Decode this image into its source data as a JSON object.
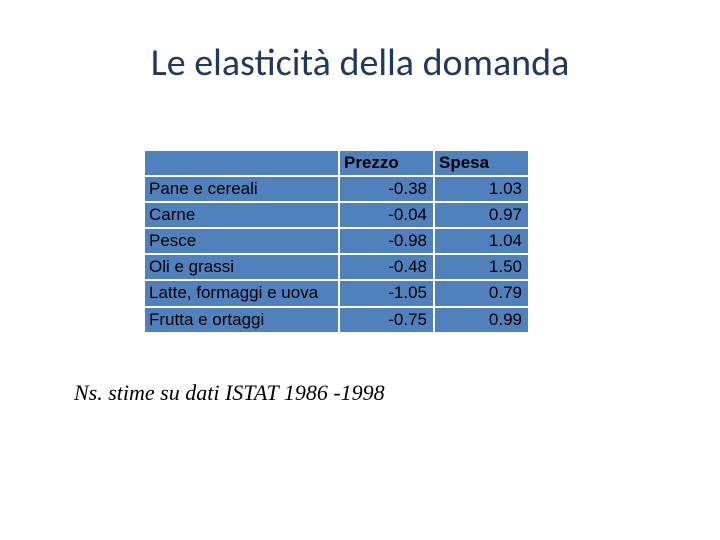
{
  "title": "Le elasticità della domanda",
  "table": {
    "header_blank": "",
    "header_prezzo": "Prezzo",
    "header_spesa": "Spesa",
    "cell_bg": "#4f81bd",
    "border_color": "#ffffff",
    "rows": [
      {
        "label": "Pane e cereali",
        "prezzo": "-0.38",
        "spesa": "1.03"
      },
      {
        "label": "Carne",
        "prezzo": "-0.04",
        "spesa": "0.97"
      },
      {
        "label": "Pesce",
        "prezzo": "-0.98",
        "spesa": "1.04"
      },
      {
        "label": "Oli e grassi",
        "prezzo": "-0.48",
        "spesa": "1.50"
      },
      {
        "label": "Latte, formaggi e uova",
        "prezzo": "-1.05",
        "spesa": "0.79"
      },
      {
        "label": "Frutta e ortaggi",
        "prezzo": "-0.75",
        "spesa": "0.99"
      }
    ]
  },
  "note": "Ns. stime su dati ISTAT 1986 -1998"
}
